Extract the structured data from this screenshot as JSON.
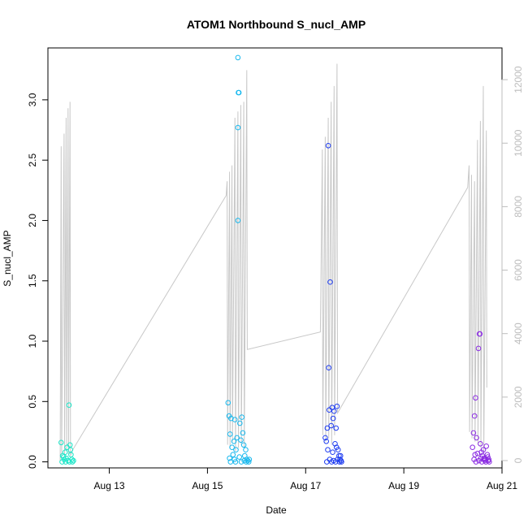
{
  "chart_data": {
    "type": "scatter",
    "title": "ATOM1 Northbound S_nucl_AMP",
    "xlabel": "Date",
    "ylabel": "S_nucl_AMP",
    "x_ticks": [
      {
        "day": 13,
        "label": "Aug 13"
      },
      {
        "day": 15,
        "label": "Aug 15"
      },
      {
        "day": 17,
        "label": "Aug 17"
      },
      {
        "day": 19,
        "label": "Aug 19"
      },
      {
        "day": 21,
        "label": "Aug 21"
      }
    ],
    "xlim_days": [
      11.75,
      21.0
    ],
    "y_left": {
      "lim": [
        -0.05,
        3.43
      ],
      "ticks": [
        0.0,
        0.5,
        1.0,
        1.5,
        2.0,
        2.5,
        3.0
      ],
      "labels": [
        "0.0",
        "0.5",
        "1.0",
        "1.5",
        "2.0",
        "2.5",
        "3.0"
      ]
    },
    "y_right": {
      "lim": [
        -230,
        13000
      ],
      "ticks": [
        0,
        2000,
        4000,
        6000,
        8000,
        10000,
        12000
      ],
      "labels": [
        "0",
        "2000",
        "4000",
        "6000",
        "8000",
        "10000",
        "12000"
      ],
      "color": "#bdbdbd"
    },
    "line_color": "#c8c8c8",
    "grid": false,
    "legend": "none",
    "series": [
      {
        "color": "#19e6c8",
        "points": [
          [
            12.02,
            0.16
          ],
          [
            12.05,
            0.05
          ],
          [
            12.08,
            0.02
          ],
          [
            12.1,
            0.08
          ],
          [
            12.12,
            0.03
          ],
          [
            12.14,
            0.12
          ],
          [
            12.16,
            0.01
          ],
          [
            12.18,
            0.47
          ],
          [
            12.2,
            0.14
          ],
          [
            12.22,
            0.06
          ],
          [
            12.24,
            0.02
          ],
          [
            12.27,
            0.01
          ],
          [
            12.04,
            0.0
          ],
          [
            12.11,
            0.0
          ],
          [
            12.19,
            0.0
          ],
          [
            12.25,
            0.0
          ],
          [
            12.07,
            0.04
          ],
          [
            12.21,
            0.1
          ]
        ]
      },
      {
        "color": "#17b8ee",
        "points": [
          [
            15.42,
            0.49
          ],
          [
            15.44,
            0.38
          ],
          [
            15.46,
            0.23
          ],
          [
            15.48,
            0.36
          ],
          [
            15.5,
            0.12
          ],
          [
            15.52,
            0.06
          ],
          [
            15.54,
            0.17
          ],
          [
            15.56,
            0.35
          ],
          [
            15.58,
            0.1
          ],
          [
            15.6,
            0.2
          ],
          [
            15.62,
            3.35
          ],
          [
            15.63,
            3.06
          ],
          [
            15.64,
            3.06
          ],
          [
            15.62,
            2.77
          ],
          [
            15.62,
            2.0
          ],
          [
            15.66,
            0.32
          ],
          [
            15.68,
            0.18
          ],
          [
            15.7,
            0.37
          ],
          [
            15.72,
            0.24
          ],
          [
            15.74,
            0.14
          ],
          [
            15.76,
            0.05
          ],
          [
            15.78,
            0.1
          ],
          [
            15.8,
            0.02
          ],
          [
            15.82,
            0.01
          ],
          [
            15.84,
            0.0
          ],
          [
            15.45,
            0.03
          ],
          [
            15.55,
            0.02
          ],
          [
            15.65,
            0.04
          ],
          [
            15.75,
            0.01
          ],
          [
            15.47,
            0.0
          ],
          [
            15.57,
            0.0
          ],
          [
            15.69,
            0.0
          ],
          [
            15.79,
            0.0
          ],
          [
            15.85,
            0.02
          ]
        ]
      },
      {
        "color": "#1e3cf0",
        "points": [
          [
            17.4,
            0.2
          ],
          [
            17.42,
            0.17
          ],
          [
            17.44,
            0.28
          ],
          [
            17.46,
            2.62
          ],
          [
            17.47,
            0.78
          ],
          [
            17.48,
            0.43
          ],
          [
            17.5,
            1.49
          ],
          [
            17.52,
            0.3
          ],
          [
            17.54,
            0.45
          ],
          [
            17.56,
            0.36
          ],
          [
            17.58,
            0.42
          ],
          [
            17.6,
            0.15
          ],
          [
            17.62,
            0.28
          ],
          [
            17.64,
            0.46
          ],
          [
            17.66,
            0.1
          ],
          [
            17.68,
            0.05
          ],
          [
            17.7,
            0.02
          ],
          [
            17.72,
            0.01
          ],
          [
            17.43,
            0.0
          ],
          [
            17.49,
            0.02
          ],
          [
            17.53,
            0.0
          ],
          [
            17.57,
            0.01
          ],
          [
            17.61,
            0.0
          ],
          [
            17.65,
            0.02
          ],
          [
            17.69,
            0.0
          ],
          [
            17.45,
            0.1
          ],
          [
            17.55,
            0.08
          ],
          [
            17.63,
            0.12
          ],
          [
            17.71,
            0.05
          ],
          [
            17.73,
            0.0
          ]
        ]
      },
      {
        "color": "#8a2be2",
        "points": [
          [
            20.4,
            0.12
          ],
          [
            20.42,
            0.24
          ],
          [
            20.44,
            0.38
          ],
          [
            20.46,
            0.53
          ],
          [
            20.48,
            0.2
          ],
          [
            20.5,
            0.07
          ],
          [
            20.52,
            0.94
          ],
          [
            20.54,
            1.06
          ],
          [
            20.55,
            1.06
          ],
          [
            20.56,
            0.15
          ],
          [
            20.58,
            0.08
          ],
          [
            20.6,
            0.05
          ],
          [
            20.62,
            0.1
          ],
          [
            20.64,
            0.03
          ],
          [
            20.66,
            0.02
          ],
          [
            20.68,
            0.13
          ],
          [
            20.7,
            0.06
          ],
          [
            20.72,
            0.01
          ],
          [
            20.74,
            0.0
          ],
          [
            20.43,
            0.02
          ],
          [
            20.47,
            0.0
          ],
          [
            20.53,
            0.01
          ],
          [
            20.59,
            0.0
          ],
          [
            20.63,
            0.02
          ],
          [
            20.67,
            0.0
          ],
          [
            20.71,
            0.04
          ],
          [
            20.45,
            0.06
          ],
          [
            20.57,
            0.03
          ],
          [
            20.65,
            0.01
          ],
          [
            20.73,
            0.02
          ]
        ]
      }
    ],
    "line_vertices": [
      [
        12.0,
        0
      ],
      [
        12.02,
        9900
      ],
      [
        12.03,
        100
      ],
      [
        12.08,
        10300
      ],
      [
        12.09,
        200
      ],
      [
        12.12,
        10800
      ],
      [
        12.13,
        300
      ],
      [
        12.16,
        11100
      ],
      [
        12.17,
        200
      ],
      [
        12.2,
        11300
      ],
      [
        12.21,
        150
      ],
      [
        12.24,
        300
      ],
      [
        15.38,
        8350
      ],
      [
        15.4,
        8800
      ],
      [
        15.41,
        500
      ],
      [
        15.45,
        9100
      ],
      [
        15.46,
        400
      ],
      [
        15.5,
        9300
      ],
      [
        15.51,
        600
      ],
      [
        15.56,
        10800
      ],
      [
        15.57,
        300
      ],
      [
        15.62,
        11000
      ],
      [
        15.63,
        400
      ],
      [
        15.68,
        11200
      ],
      [
        15.69,
        500
      ],
      [
        15.74,
        11300
      ],
      [
        15.75,
        400
      ],
      [
        15.8,
        12300
      ],
      [
        15.81,
        3500
      ],
      [
        17.3,
        4050
      ],
      [
        17.34,
        9800
      ],
      [
        17.35,
        800
      ],
      [
        17.4,
        10200
      ],
      [
        17.41,
        600
      ],
      [
        17.46,
        10800
      ],
      [
        17.47,
        700
      ],
      [
        17.52,
        11300
      ],
      [
        17.53,
        500
      ],
      [
        17.58,
        11800
      ],
      [
        17.59,
        800
      ],
      [
        17.64,
        12500
      ],
      [
        17.65,
        1500
      ],
      [
        20.3,
        8600
      ],
      [
        20.33,
        9300
      ],
      [
        20.34,
        900
      ],
      [
        20.38,
        9000
      ],
      [
        20.39,
        700
      ],
      [
        20.44,
        8800
      ],
      [
        20.45,
        600
      ],
      [
        20.5,
        10100
      ],
      [
        20.51,
        500
      ],
      [
        20.56,
        10700
      ],
      [
        20.57,
        400
      ],
      [
        20.62,
        11800
      ],
      [
        20.63,
        300
      ],
      [
        20.68,
        10400
      ],
      [
        20.69,
        2300
      ]
    ]
  }
}
